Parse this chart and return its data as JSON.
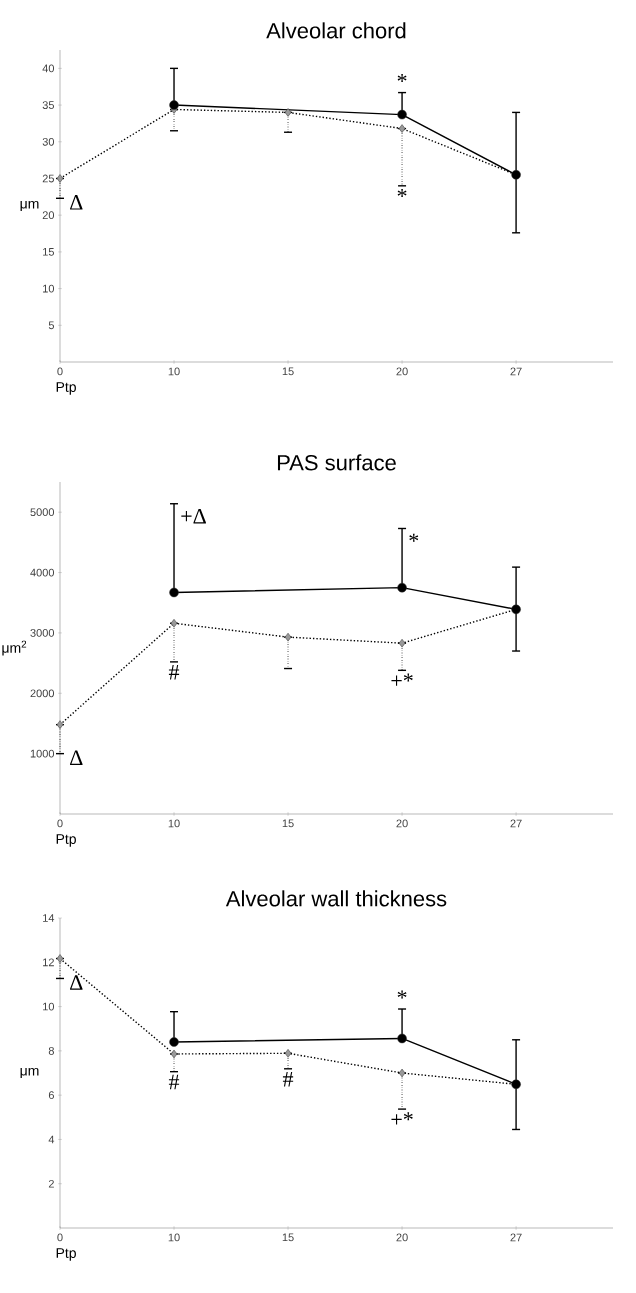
{
  "chart_data": [
    {
      "type": "line",
      "title": "Alveolar chord",
      "xlabel": "Ptp",
      "ylabel": "μm",
      "categories": [
        "0",
        "10",
        "15",
        "20",
        "27"
      ],
      "ylim": [
        0,
        42.5
      ],
      "yticks": [
        5,
        10,
        15,
        20,
        25,
        30,
        35,
        40
      ],
      "grid": false,
      "series": [
        {
          "color": "#000000",
          "marker": "circle",
          "line_style": "solid",
          "values": [
            null,
            35,
            null,
            33.7,
            25.5
          ],
          "errors": [
            null,
            [
              35,
              40
            ],
            null,
            [
              33.7,
              36.7
            ],
            [
              17.6,
              34
            ]
          ]
        },
        {
          "color": "#999999",
          "marker": "diamond",
          "line_style": "dotted",
          "values": [
            25,
            34.4,
            34,
            31.8,
            25.5
          ],
          "errors": [
            [
              22.3,
              25
            ],
            [
              31.5,
              34.4
            ],
            [
              31.3,
              34
            ],
            [
              24,
              31.8
            ],
            null
          ]
        }
      ],
      "annotations": [
        {
          "text": "*",
          "x": "20",
          "y": 33.7
        },
        {
          "text": "*",
          "x": "20",
          "y": 31.8
        },
        {
          "text": "Δ",
          "x": "0",
          "y": 25
        }
      ]
    },
    {
      "type": "line",
      "title": "PAS surface",
      "xlabel": "Ptp",
      "ylabel": "μm$^{2}$",
      "categories": [
        "0",
        "10",
        "15",
        "20",
        "27"
      ],
      "ylim": [
        0,
        5500
      ],
      "yticks": [
        1000,
        2000,
        3000,
        4000,
        5000
      ],
      "grid": false,
      "series": [
        {
          "color": "#000000",
          "marker": "circle",
          "line_style": "solid",
          "values": [
            null,
            3670,
            null,
            3750,
            3390
          ],
          "errors": [
            null,
            [
              3670,
              5140
            ],
            null,
            [
              3750,
              4730
            ],
            [
              2700,
              4090
            ]
          ]
        },
        {
          "color": "#999999",
          "marker": "diamond",
          "line_style": "dotted",
          "values": [
            1480,
            3160,
            2930,
            2830,
            3390
          ],
          "errors": [
            [
              1000,
              1480
            ],
            [
              2520,
              3160
            ],
            [
              2410,
              2930
            ],
            [
              2380,
              2830
            ],
            null
          ]
        }
      ],
      "annotations": [
        {
          "text": "+Δ",
          "x": "10",
          "y": 5140
        },
        {
          "text": "*",
          "x": "20",
          "y": 4730
        },
        {
          "text": "#",
          "x": "10",
          "y": 3160
        },
        {
          "text": "+*",
          "x": "20",
          "y": 2830
        },
        {
          "text": "Δ",
          "x": "0",
          "y": 1480
        }
      ]
    },
    {
      "type": "line",
      "title": "Alveolar wall thickness",
      "xlabel": "Ptp",
      "ylabel": "μm",
      "categories": [
        "0",
        "10",
        "15",
        "20",
        "27"
      ],
      "ylim": [
        0,
        14
      ],
      "yticks": [
        2,
        4,
        6,
        8,
        10,
        12,
        14
      ],
      "grid": false,
      "series": [
        {
          "color": "#000000",
          "marker": "circle",
          "line_style": "solid",
          "values": [
            null,
            8.4,
            null,
            8.56,
            6.49
          ],
          "errors": [
            null,
            [
              8.4,
              9.77
            ],
            null,
            [
              8.56,
              9.89
            ],
            [
              4.45,
              8.5
            ]
          ]
        },
        {
          "color": "#999999",
          "marker": "diamond",
          "line_style": "dotted",
          "values": [
            12.17,
            7.86,
            7.89,
            7.0,
            6.49
          ],
          "errors": [
            [
              11.27,
              12.17
            ],
            [
              7.06,
              7.86
            ],
            [
              7.19,
              7.89
            ],
            [
              5.37,
              7.0
            ],
            null
          ]
        }
      ],
      "annotations": [
        {
          "text": "Δ",
          "x": "0",
          "y": 12.17
        },
        {
          "text": "#",
          "x": "10",
          "y": 7.86
        },
        {
          "text": "#",
          "x": "15",
          "y": 7.89
        },
        {
          "text": "*",
          "x": "20",
          "y": 8.56
        },
        {
          "text": "+*",
          "x": "20",
          "y": 7.0
        }
      ]
    }
  ]
}
